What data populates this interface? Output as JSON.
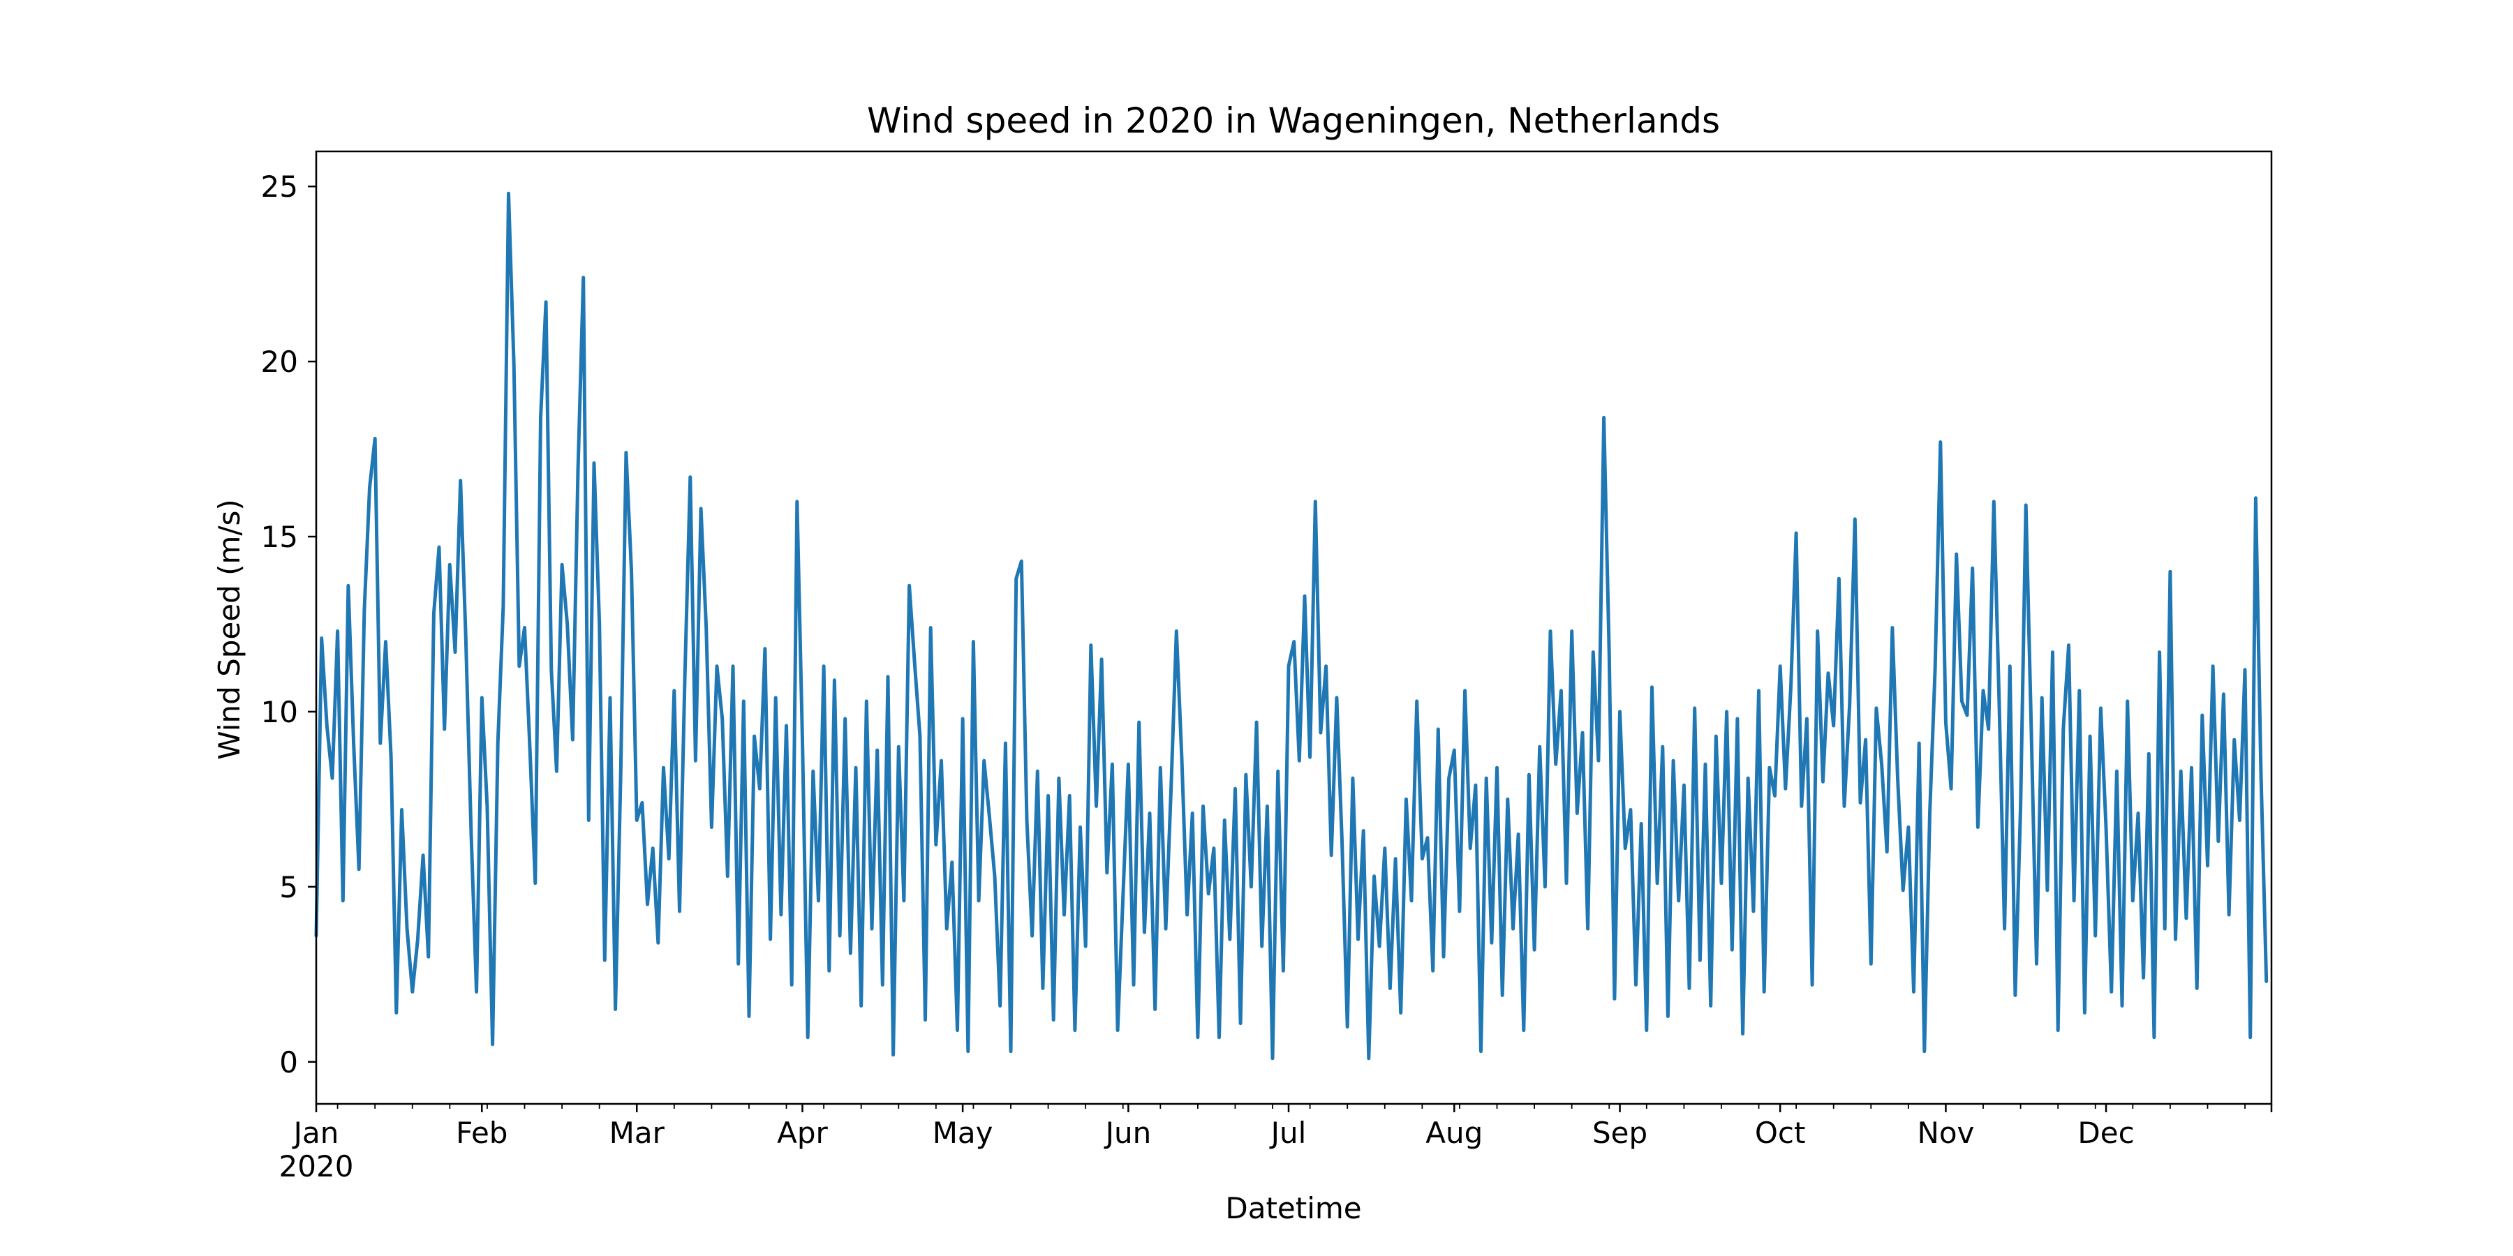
{
  "chart_data": {
    "type": "line",
    "title": "Wind speed in 2020 in Wageningen, Netherlands",
    "xlabel": "Datetime",
    "ylabel": "Wind Speed (m/s)",
    "xlim": [
      "2020-01-01",
      "2020-12-31T23:00"
    ],
    "ylim": [
      -1.2,
      26
    ],
    "yticks": [
      0,
      5,
      10,
      15,
      20,
      25
    ],
    "xticks": [
      {
        "date": "2020-01-01",
        "label": "Jan",
        "sublabel": "2020"
      },
      {
        "date": "2020-02-01",
        "label": "Feb"
      },
      {
        "date": "2020-03-01",
        "label": "Mar"
      },
      {
        "date": "2020-04-01",
        "label": "Apr"
      },
      {
        "date": "2020-05-01",
        "label": "May"
      },
      {
        "date": "2020-06-01",
        "label": "Jun"
      },
      {
        "date": "2020-07-01",
        "label": "Jul"
      },
      {
        "date": "2020-08-01",
        "label": "Aug"
      },
      {
        "date": "2020-09-01",
        "label": "Sep"
      },
      {
        "date": "2020-10-01",
        "label": "Oct"
      },
      {
        "date": "2020-11-01",
        "label": "Nov"
      },
      {
        "date": "2020-12-01",
        "label": "Dec"
      }
    ],
    "grid": false,
    "color": "#1f77b4",
    "series": [
      {
        "x": [
          "2020-01-01",
          "2020-01-02",
          "2020-01-03",
          "2020-01-04",
          "2020-01-05",
          "2020-01-06",
          "2020-01-07",
          "2020-01-08",
          "2020-01-09",
          "2020-01-10",
          "2020-01-11",
          "2020-01-12",
          "2020-01-13",
          "2020-01-14",
          "2020-01-15",
          "2020-01-16",
          "2020-01-17",
          "2020-01-18",
          "2020-01-19",
          "2020-01-20",
          "2020-01-21",
          "2020-01-22",
          "2020-01-23",
          "2020-01-24",
          "2020-01-25",
          "2020-01-26",
          "2020-01-27",
          "2020-01-28",
          "2020-01-29",
          "2020-01-30",
          "2020-01-31",
          "2020-02-01",
          "2020-02-02",
          "2020-02-03",
          "2020-02-04",
          "2020-02-05",
          "2020-02-06",
          "2020-02-07",
          "2020-02-08",
          "2020-02-09",
          "2020-02-10",
          "2020-02-11",
          "2020-02-12",
          "2020-02-13",
          "2020-02-14",
          "2020-02-15",
          "2020-02-16",
          "2020-02-17",
          "2020-02-18",
          "2020-02-19",
          "2020-02-20",
          "2020-02-21",
          "2020-02-22",
          "2020-02-23",
          "2020-02-24",
          "2020-02-25",
          "2020-02-26",
          "2020-02-27",
          "2020-02-28",
          "2020-02-29",
          "2020-03-01",
          "2020-03-02",
          "2020-03-03",
          "2020-03-04",
          "2020-03-05",
          "2020-03-06",
          "2020-03-07",
          "2020-03-08",
          "2020-03-09",
          "2020-03-10",
          "2020-03-11",
          "2020-03-12",
          "2020-03-13",
          "2020-03-14",
          "2020-03-15",
          "2020-03-16",
          "2020-03-17",
          "2020-03-18",
          "2020-03-19",
          "2020-03-20",
          "2020-03-21",
          "2020-03-22",
          "2020-03-23",
          "2020-03-24",
          "2020-03-25",
          "2020-03-26",
          "2020-03-27",
          "2020-03-28",
          "2020-03-29",
          "2020-03-30",
          "2020-03-31",
          "2020-04-01",
          "2020-04-02",
          "2020-04-03",
          "2020-04-04",
          "2020-04-05",
          "2020-04-06",
          "2020-04-07",
          "2020-04-08",
          "2020-04-09",
          "2020-04-10",
          "2020-04-11",
          "2020-04-12",
          "2020-04-13",
          "2020-04-14",
          "2020-04-15",
          "2020-04-16",
          "2020-04-17",
          "2020-04-18",
          "2020-04-19",
          "2020-04-20",
          "2020-04-21",
          "2020-04-22",
          "2020-04-23",
          "2020-04-24",
          "2020-04-25",
          "2020-04-26",
          "2020-04-27",
          "2020-04-28",
          "2020-04-29",
          "2020-04-30",
          "2020-05-01",
          "2020-05-02",
          "2020-05-03",
          "2020-05-04",
          "2020-05-05",
          "2020-05-06",
          "2020-05-07",
          "2020-05-08",
          "2020-05-09",
          "2020-05-10",
          "2020-05-11",
          "2020-05-12",
          "2020-05-13",
          "2020-05-14",
          "2020-05-15",
          "2020-05-16",
          "2020-05-17",
          "2020-05-18",
          "2020-05-19",
          "2020-05-20",
          "2020-05-21",
          "2020-05-22",
          "2020-05-23",
          "2020-05-24",
          "2020-05-25",
          "2020-05-26",
          "2020-05-27",
          "2020-05-28",
          "2020-05-29",
          "2020-05-30",
          "2020-05-31",
          "2020-06-01",
          "2020-06-02",
          "2020-06-03",
          "2020-06-04",
          "2020-06-05",
          "2020-06-06",
          "2020-06-07",
          "2020-06-08",
          "2020-06-09",
          "2020-06-10",
          "2020-06-11",
          "2020-06-12",
          "2020-06-13",
          "2020-06-14",
          "2020-06-15",
          "2020-06-16",
          "2020-06-17",
          "2020-06-18",
          "2020-06-19",
          "2020-06-20",
          "2020-06-21",
          "2020-06-22",
          "2020-06-23",
          "2020-06-24",
          "2020-06-25",
          "2020-06-26",
          "2020-06-27",
          "2020-06-28",
          "2020-06-29",
          "2020-06-30",
          "2020-07-01",
          "2020-07-02",
          "2020-07-03",
          "2020-07-04",
          "2020-07-05",
          "2020-07-06",
          "2020-07-07",
          "2020-07-08",
          "2020-07-09",
          "2020-07-10",
          "2020-07-11",
          "2020-07-12",
          "2020-07-13",
          "2020-07-14",
          "2020-07-15",
          "2020-07-16",
          "2020-07-17",
          "2020-07-18",
          "2020-07-19",
          "2020-07-20",
          "2020-07-21",
          "2020-07-22",
          "2020-07-23",
          "2020-07-24",
          "2020-07-25",
          "2020-07-26",
          "2020-07-27",
          "2020-07-28",
          "2020-07-29",
          "2020-07-30",
          "2020-07-31",
          "2020-08-01",
          "2020-08-02",
          "2020-08-03",
          "2020-08-04",
          "2020-08-05",
          "2020-08-06",
          "2020-08-07",
          "2020-08-08",
          "2020-08-09",
          "2020-08-10",
          "2020-08-11",
          "2020-08-12",
          "2020-08-13",
          "2020-08-14",
          "2020-08-15",
          "2020-08-16",
          "2020-08-17",
          "2020-08-18",
          "2020-08-19",
          "2020-08-20",
          "2020-08-21",
          "2020-08-22",
          "2020-08-23",
          "2020-08-24",
          "2020-08-25",
          "2020-08-26",
          "2020-08-27",
          "2020-08-28",
          "2020-08-29",
          "2020-08-30",
          "2020-08-31",
          "2020-09-01",
          "2020-09-02",
          "2020-09-03",
          "2020-09-04",
          "2020-09-05",
          "2020-09-06",
          "2020-09-07",
          "2020-09-08",
          "2020-09-09",
          "2020-09-10",
          "2020-09-11",
          "2020-09-12",
          "2020-09-13",
          "2020-09-14",
          "2020-09-15",
          "2020-09-16",
          "2020-09-17",
          "2020-09-18",
          "2020-09-19",
          "2020-09-20",
          "2020-09-21",
          "2020-09-22",
          "2020-09-23",
          "2020-09-24",
          "2020-09-25",
          "2020-09-26",
          "2020-09-27",
          "2020-09-28",
          "2020-09-29",
          "2020-09-30",
          "2020-10-01",
          "2020-10-02",
          "2020-10-03",
          "2020-10-04",
          "2020-10-05",
          "2020-10-06",
          "2020-10-07",
          "2020-10-08",
          "2020-10-09",
          "2020-10-10",
          "2020-10-11",
          "2020-10-12",
          "2020-10-13",
          "2020-10-14",
          "2020-10-15",
          "2020-10-16",
          "2020-10-17",
          "2020-10-18",
          "2020-10-19",
          "2020-10-20",
          "2020-10-21",
          "2020-10-22",
          "2020-10-23",
          "2020-10-24",
          "2020-10-25",
          "2020-10-26",
          "2020-10-27",
          "2020-10-28",
          "2020-10-29",
          "2020-10-30",
          "2020-10-31",
          "2020-11-01",
          "2020-11-02",
          "2020-11-03",
          "2020-11-04",
          "2020-11-05",
          "2020-11-06",
          "2020-11-07",
          "2020-11-08",
          "2020-11-09",
          "2020-11-10",
          "2020-11-11",
          "2020-11-12",
          "2020-11-13",
          "2020-11-14",
          "2020-11-15",
          "2020-11-16",
          "2020-11-17",
          "2020-11-18",
          "2020-11-19",
          "2020-11-20",
          "2020-11-21",
          "2020-11-22",
          "2020-11-23",
          "2020-11-24",
          "2020-11-25",
          "2020-11-26",
          "2020-11-27",
          "2020-11-28",
          "2020-11-29",
          "2020-11-30",
          "2020-12-01",
          "2020-12-02",
          "2020-12-03",
          "2020-12-04",
          "2020-12-05",
          "2020-12-06",
          "2020-12-07",
          "2020-12-08",
          "2020-12-09",
          "2020-12-10",
          "2020-12-11",
          "2020-12-12",
          "2020-12-13",
          "2020-12-14",
          "2020-12-15",
          "2020-12-16",
          "2020-12-17",
          "2020-12-18",
          "2020-12-19",
          "2020-12-20",
          "2020-12-21",
          "2020-12-22",
          "2020-12-23",
          "2020-12-24",
          "2020-12-25",
          "2020-12-26",
          "2020-12-27",
          "2020-12-28",
          "2020-12-29",
          "2020-12-30",
          "2020-12-31"
        ],
        "values": [
          3.6,
          12.1,
          9.6,
          8.1,
          12.3,
          4.6,
          13.6,
          9.1,
          5.5,
          12.9,
          16.4,
          17.8,
          9.1,
          12.0,
          8.7,
          1.4,
          7.2,
          3.8,
          2.0,
          3.5,
          5.9,
          3.0,
          12.8,
          14.7,
          9.5,
          14.2,
          11.7,
          16.6,
          12.1,
          6.5,
          2.0,
          10.4,
          7.3,
          0.5,
          9.1,
          13.0,
          24.8,
          19.9,
          11.3,
          12.4,
          8.9,
          5.1,
          18.4,
          21.7,
          11.2,
          8.3,
          14.2,
          12.5,
          9.2,
          16.9,
          22.4,
          6.9,
          17.1,
          12.5,
          2.9,
          10.4,
          1.5,
          8.3,
          17.4,
          14.0,
          6.9,
          7.4,
          4.5,
          6.1,
          3.4,
          8.4,
          5.8,
          10.6,
          4.3,
          11.0,
          16.7,
          8.6,
          15.8,
          12.4,
          6.7,
          11.3,
          9.8,
          5.3,
          11.3,
          2.8,
          10.3,
          1.3,
          9.3,
          7.8,
          11.8,
          3.5,
          10.4,
          4.2,
          9.6,
          2.2,
          16.0,
          9.2,
          0.7,
          8.3,
          4.6,
          11.3,
          2.6,
          10.9,
          3.6,
          9.8,
          3.1,
          8.4,
          1.6,
          10.3,
          3.8,
          8.9,
          2.2,
          11.0,
          0.2,
          9.0,
          4.6,
          13.6,
          11.4,
          9.3,
          1.2,
          12.4,
          6.2,
          8.6,
          3.8,
          5.7,
          0.9,
          9.8,
          0.3,
          12.0,
          4.6,
          8.6,
          7.0,
          5.3,
          1.6,
          9.1,
          0.3,
          13.8,
          14.3,
          6.9,
          3.6,
          8.3,
          2.1,
          7.6,
          1.2,
          8.1,
          4.2,
          7.6,
          0.9,
          6.7,
          3.3,
          11.9,
          7.3,
          11.5,
          5.4,
          8.5,
          0.9,
          4.7,
          8.5,
          2.2,
          9.7,
          3.7,
          7.1,
          1.5,
          8.4,
          3.8,
          7.8,
          12.3,
          8.7,
          4.2,
          7.1,
          0.7,
          7.3,
          4.8,
          6.1,
          0.7,
          6.9,
          3.5,
          7.8,
          1.1,
          8.2,
          5.0,
          9.7,
          3.3,
          7.3,
          0.1,
          8.3,
          2.6,
          11.3,
          12.0,
          8.6,
          13.3,
          8.7,
          16.0,
          9.4,
          11.3,
          5.9,
          10.4,
          6.3,
          1.0,
          8.1,
          3.5,
          6.6,
          0.1,
          5.3,
          3.3,
          6.1,
          2.1,
          5.8,
          1.4,
          7.5,
          4.6,
          10.3,
          5.8,
          6.4,
          2.6,
          9.5,
          3.0,
          8.1,
          8.9,
          4.3,
          10.6,
          6.1,
          7.9,
          0.3,
          8.1,
          3.4,
          8.4,
          1.9,
          7.5,
          3.8,
          6.5,
          0.9,
          8.2,
          3.2,
          9.0,
          5.0,
          12.3,
          8.5,
          10.6,
          5.1,
          12.3,
          7.1,
          9.4,
          3.8,
          11.7,
          8.6,
          18.4,
          11.7,
          1.8,
          10.0,
          6.1,
          7.2,
          2.2,
          6.8,
          0.9,
          10.7,
          5.1,
          9.0,
          1.3,
          8.6,
          4.6,
          7.9,
          2.1,
          10.1,
          2.9,
          8.5,
          1.6,
          9.3,
          5.1,
          10.0,
          3.2,
          9.8,
          0.8,
          8.1,
          4.3,
          10.6,
          2.0,
          8.4,
          7.6,
          11.3,
          7.8,
          10.7,
          15.1,
          7.3,
          9.8,
          2.2,
          12.3,
          8.0,
          11.1,
          9.6,
          13.8,
          7.3,
          10.2,
          15.5,
          7.4,
          9.2,
          2.8,
          10.1,
          8.5,
          6.0,
          12.4,
          8.1,
          4.9,
          6.7,
          2.0,
          9.1,
          0.3,
          7.1,
          11.2,
          17.7,
          9.7,
          7.8,
          14.5,
          10.3,
          9.9,
          14.1,
          6.7,
          10.6,
          9.5,
          16.0,
          10.2,
          3.8,
          11.3,
          1.9,
          7.3,
          15.9,
          9.5,
          2.8,
          10.4,
          4.9,
          11.7,
          0.9,
          9.5,
          11.9,
          4.6,
          10.6,
          1.4,
          9.3,
          3.6,
          10.1,
          6.7,
          2.0,
          8.3,
          1.6,
          10.3,
          4.6,
          7.1,
          2.4,
          8.8,
          0.7,
          11.7,
          3.8,
          14.0,
          3.5,
          8.3,
          4.1,
          8.4,
          2.1,
          9.9,
          5.6,
          11.3,
          6.3,
          10.5,
          4.2,
          9.2,
          6.9,
          11.2,
          0.7,
          16.1,
          8.2,
          2.3
        ]
      }
    ]
  }
}
